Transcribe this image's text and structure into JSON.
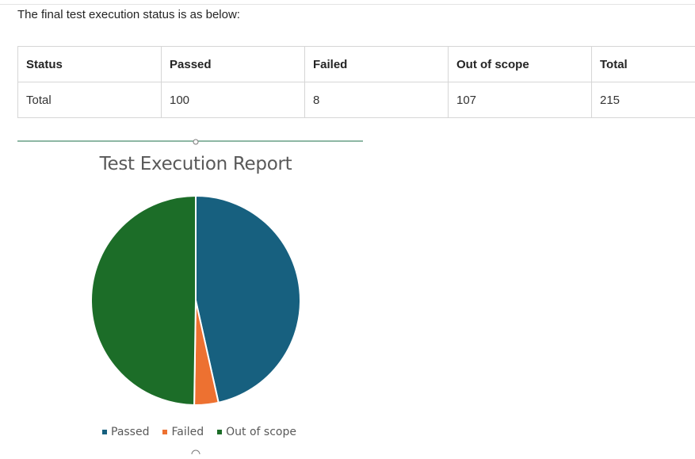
{
  "intro_text": "The final test execution status is as below:",
  "table": {
    "headers": [
      "Status",
      "Passed",
      "Failed",
      "Out of scope",
      "Total"
    ],
    "rows": [
      [
        "Total",
        "100",
        "8",
        "107",
        "215"
      ]
    ]
  },
  "colors": {
    "passed": "#17607f",
    "failed": "#ed7131",
    "out_of_scope": "#1c6d28",
    "chart_border_line": "#1e6f4a"
  },
  "chart_data": {
    "type": "pie",
    "title": "Test Execution Report",
    "categories": [
      "Passed",
      "Failed",
      "Out of scope"
    ],
    "values": [
      100,
      8,
      107
    ],
    "colors": [
      "#17607f",
      "#ed7131",
      "#1c6d28"
    ],
    "legend_position": "bottom"
  }
}
